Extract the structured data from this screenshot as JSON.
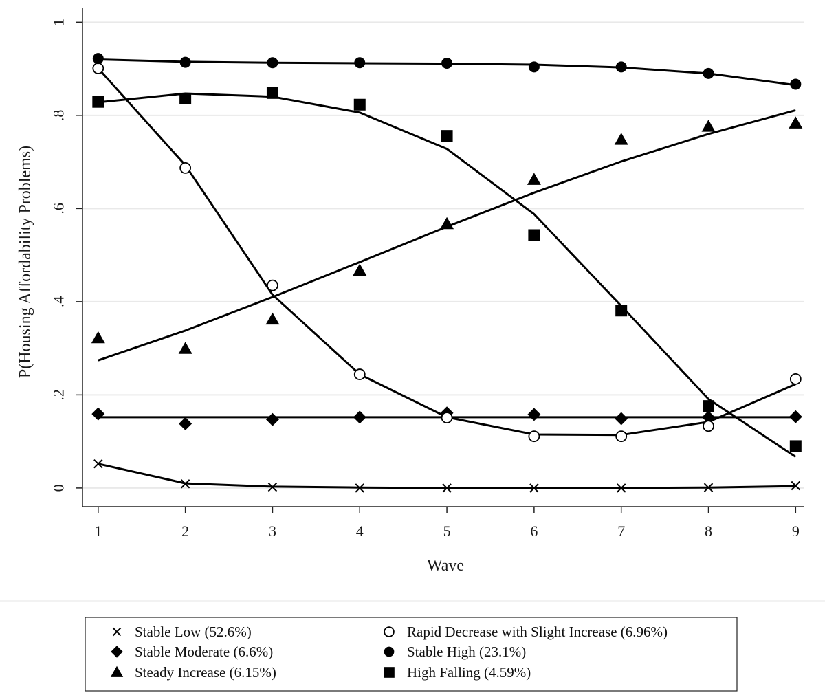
{
  "chart_data": {
    "type": "line",
    "title": "",
    "xlabel": "Wave",
    "ylabel": "P(Housing Affordability Problems)",
    "x": [
      1,
      2,
      3,
      4,
      5,
      6,
      7,
      8,
      9
    ],
    "xlim": [
      0.82,
      9.1
    ],
    "ylim": [
      -0.04,
      1.03
    ],
    "xticks": [
      "1",
      "2",
      "3",
      "4",
      "5",
      "6",
      "7",
      "8",
      "9"
    ],
    "yticks": [
      {
        "value": 0,
        "label": "0"
      },
      {
        "value": 0.2,
        "label": ".2"
      },
      {
        "value": 0.4,
        "label": ".4"
      },
      {
        "value": 0.6,
        "label": ".6"
      },
      {
        "value": 0.8,
        "label": ".8"
      },
      {
        "value": 1,
        "label": "1"
      }
    ],
    "grid": "horizontal",
    "legend_position": "bottom",
    "series": [
      {
        "name": "Stable Low (52.6%)",
        "marker": "x",
        "observed": [
          0.052,
          0.009,
          0.002,
          0.0,
          0.0,
          0.0,
          0.0,
          0.001,
          0.005
        ],
        "fitted": [
          0.052,
          0.01,
          0.003,
          0.001,
          0.0,
          0.0,
          0.0,
          0.001,
          0.004
        ]
      },
      {
        "name": "Stable Moderate (6.6%)",
        "marker": "diamond",
        "observed": [
          0.159,
          0.138,
          0.147,
          0.152,
          0.161,
          0.158,
          0.149,
          0.152,
          0.153
        ],
        "fitted": [
          0.152,
          0.152,
          0.152,
          0.152,
          0.152,
          0.152,
          0.152,
          0.152,
          0.152
        ]
      },
      {
        "name": "Steady Increase (6.15%)",
        "marker": "triangle",
        "observed": [
          0.322,
          0.299,
          0.362,
          0.467,
          0.567,
          0.662,
          0.748,
          0.776,
          0.783
        ],
        "fitted": [
          0.274,
          0.338,
          0.41,
          0.485,
          0.561,
          0.634,
          0.701,
          0.76,
          0.811
        ]
      },
      {
        "name": "Rapid Decrease with Slight Increase (6.96%)",
        "marker": "circle-open",
        "observed": [
          0.901,
          0.687,
          0.435,
          0.244,
          0.151,
          0.111,
          0.111,
          0.133,
          0.234
        ],
        "fitted": [
          0.901,
          0.693,
          0.415,
          0.244,
          0.152,
          0.115,
          0.114,
          0.142,
          0.223
        ]
      },
      {
        "name": "Stable High (23.1%)",
        "marker": "circle-filled",
        "observed": [
          0.922,
          0.914,
          0.913,
          0.913,
          0.912,
          0.904,
          0.904,
          0.89,
          0.867
        ],
        "fitted": [
          0.92,
          0.915,
          0.913,
          0.912,
          0.911,
          0.909,
          0.903,
          0.89,
          0.865
        ]
      },
      {
        "name": "High Falling (4.59%)",
        "marker": "square",
        "observed": [
          0.829,
          0.836,
          0.848,
          0.823,
          0.756,
          0.543,
          0.381,
          0.176,
          0.09
        ],
        "fitted": [
          0.828,
          0.847,
          0.84,
          0.806,
          0.728,
          0.588,
          0.391,
          0.191,
          0.067
        ]
      }
    ],
    "legend_layout": [
      [
        "Stable Low (52.6%)",
        "Rapid Decrease with Slight Increase (6.96%)"
      ],
      [
        "Stable Moderate (6.6%)",
        "Stable High (23.1%)"
      ],
      [
        "Steady Increase (6.15%)",
        "High Falling (4.59%)"
      ]
    ]
  }
}
